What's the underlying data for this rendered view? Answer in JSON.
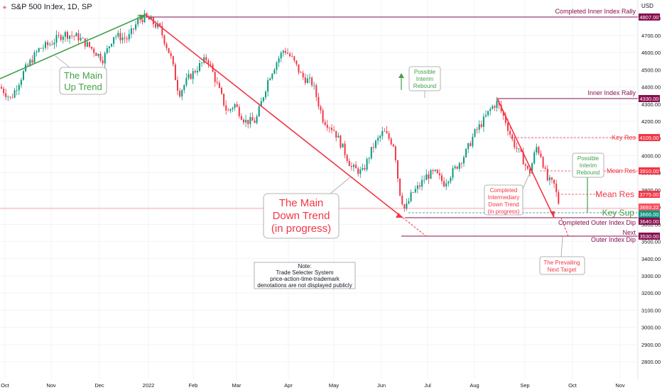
{
  "header": {
    "title": "S&P 500 Index, 1D, SP",
    "currency": "USD"
  },
  "chart_data": {
    "type": "candlestick",
    "title": "S&P 500 Index, 1D, SP",
    "xaxis_labels": [
      "Oct",
      "Nov",
      "Dec",
      "2022",
      "Feb",
      "Mar",
      "Apr",
      "May",
      "Jun",
      "Jul",
      "Aug",
      "Sep",
      "Oct",
      "Nov"
    ],
    "yaxis_labels": [
      4800,
      4700,
      4600,
      4500,
      4400,
      4300,
      4200,
      4100,
      4000,
      3900,
      3800,
      3700,
      3600,
      3500,
      3400,
      3300,
      3200,
      3100,
      3000,
      2900,
      2800
    ],
    "ylim": [
      2720,
      4880
    ],
    "levels": [
      {
        "name": "Completed Inner Index Rally",
        "value": "4807.00",
        "color": "#880e4f"
      },
      {
        "name": "Inner Index Rally",
        "value": "4330.00",
        "color": "#880e4f"
      },
      {
        "name": "Key Res",
        "value": "4105.00",
        "color": "#f23645"
      },
      {
        "name": "Mean Res",
        "value": "3910.00",
        "color": "#f23645"
      },
      {
        "name": "Mean Res",
        "value": "3775.00",
        "color": "#f23645"
      },
      {
        "name": "",
        "value": "3693.22",
        "color": "#f7525f"
      },
      {
        "name": "Key Sup",
        "value": "3666.00",
        "color": "#089981"
      },
      {
        "name": "Completed Outer Index Dip",
        "value": "3640.00",
        "color": "#880e4f"
      },
      {
        "name": "Next Outer Index Dip",
        "value": "3530.00",
        "color": "#880e4f"
      }
    ],
    "annotations": [
      "The Main Up Trend",
      "The Main Down Trend (in progress)",
      "Possible Interim Rebound",
      "Completed Intermediary Down Trend (in progress)",
      "Possible Interim Rebound",
      "The Prevailing Next Target",
      "Note: Trade Selecter System price-action-time-trademark denotations are not displayed publicly"
    ]
  },
  "labels": {
    "completed_inner": "Completed Inner Index Rally",
    "inner_rally": "Inner Index Rally",
    "key_res": "Key Res",
    "mean_res_small": "Mean Res",
    "mean_res_big": "Mean Res",
    "key_sup": "Key Sup",
    "completed_outer": "Completed Outer Index Dip",
    "next": "Next",
    "outer_dip": "Outer Index Dip",
    "up_trend_1": "The Main",
    "up_trend_2": "Up Trend",
    "down_trend_1": "The Main",
    "down_trend_2": "Down Trend",
    "down_trend_3": "(in progress)",
    "rebound1_1": "Possible",
    "rebound1_2": "Interim",
    "rebound1_3": "Rebound",
    "rebound2_1": "Possible",
    "rebound2_2": "Interim",
    "rebound2_3": "Rebound",
    "inter_1": "Completed",
    "inter_2": "Intermediary",
    "inter_3": "Down Trend",
    "inter_4": "(in progress)",
    "target_1": "The Prevailing",
    "target_2": "Next Target",
    "note_1": "Note:",
    "note_2": "Trade Selecter System",
    "note_3": "price-action-time-trademark",
    "note_4": "denotations are not displayed publicly"
  },
  "price_tags": {
    "p4807": "4807.00",
    "p4330": "4330.00",
    "p4105": "4105.00",
    "p3910": "3910.00",
    "p3775": "3775.00",
    "p3693": "3693.22",
    "p3666": "3666.00",
    "p3640": "3640.00",
    "p3530": "3530.00"
  },
  "colors": {
    "up": "#089981",
    "down": "#f23645",
    "maroon": "#880e4f",
    "green_text": "#43a047",
    "red_text": "#f23645"
  }
}
